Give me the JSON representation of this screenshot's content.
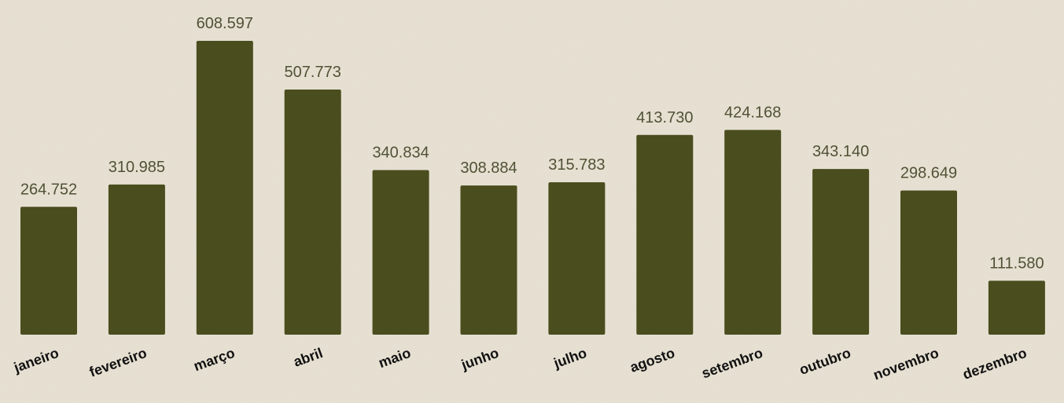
{
  "chart_data": {
    "type": "bar",
    "categories": [
      "janeiro",
      "fevereiro",
      "março",
      "abril",
      "maio",
      "junho",
      "julho",
      "agosto",
      "setembro",
      "outubro",
      "novembro",
      "dezembro"
    ],
    "values": [
      264752,
      310985,
      608597,
      507773,
      340834,
      308884,
      315783,
      413730,
      424168,
      343140,
      298649,
      111580
    ],
    "value_labels": [
      "264.752",
      "310.985",
      "608.597",
      "507.773",
      "340.834",
      "308.884",
      "315.783",
      "413.730",
      "424.168",
      "343.140",
      "298.649",
      "111.580"
    ],
    "color": "#4a4d1e"
  }
}
